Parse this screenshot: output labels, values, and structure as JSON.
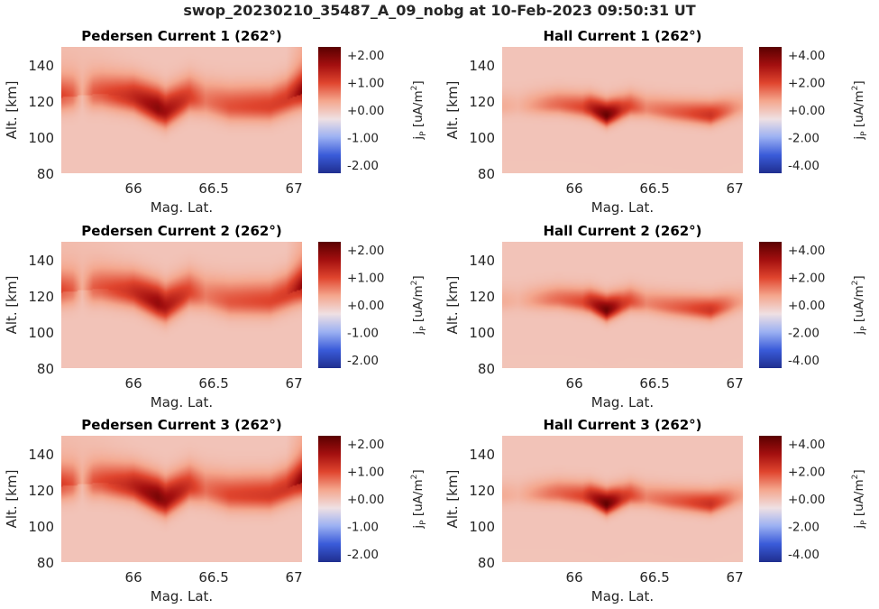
{
  "figure": {
    "title": "swop_20230210_35487_A_09_nobg at 10-Feb-2023 09:50:31 UT"
  },
  "colors": {
    "colormap": [
      "#1f2e8f",
      "#3a5bd9",
      "#9bb0f2",
      "#efe0e3",
      "#f4a78e",
      "#e0452e",
      "#a30f0f",
      "#5a0000"
    ],
    "background": "#efe0e3"
  },
  "chart_data": [
    {
      "type": "heatmap",
      "title": "Pedersen Current 1 (262°)",
      "xlabel": "Mag. Lat.",
      "ylabel": "Alt. [km]",
      "xlim": [
        65.55,
        67.05
      ],
      "ylim": [
        80,
        150
      ],
      "xticks": [
        "66",
        "66.5",
        "67"
      ],
      "xtick_values": [
        66,
        66.5,
        67
      ],
      "yticks": [
        "80",
        "100",
        "120",
        "140"
      ],
      "ytick_values": [
        80,
        100,
        120,
        140
      ],
      "colorbar": {
        "label": "j",
        "label_sub": "P",
        "label_unit": "[uA/m",
        "label_sup": "2",
        "label_end": "]",
        "clim": [
          -2.3,
          2.3
        ],
        "ticks": [
          "+2.00",
          "+1.00",
          "+0.00",
          "-1.00",
          "-2.00"
        ],
        "tick_values": [
          2,
          1,
          0,
          -1,
          -2
        ]
      },
      "field": {
        "max_value": 1.9,
        "center_altitude_by_lat": [
          [
            65.55,
            122
          ],
          [
            65.8,
            124
          ],
          [
            66.0,
            122
          ],
          [
            66.2,
            114
          ],
          [
            66.35,
            122
          ],
          [
            66.6,
            117
          ],
          [
            66.85,
            117
          ],
          [
            67.05,
            124
          ]
        ],
        "vertical_width_km": 9,
        "intensity_by_lat": [
          [
            65.55,
            0.42
          ],
          [
            65.62,
            0.34
          ],
          [
            65.68,
            0.05
          ],
          [
            65.75,
            0.38
          ],
          [
            65.95,
            0.62
          ],
          [
            66.15,
            0.98
          ],
          [
            66.3,
            0.68
          ],
          [
            66.45,
            0.34
          ],
          [
            66.6,
            0.48
          ],
          [
            66.85,
            0.55
          ],
          [
            67.0,
            0.6
          ],
          [
            67.05,
            0.68
          ]
        ],
        "upward_plume": [
          [
            65.55,
            0.3
          ],
          [
            66.0,
            0.0
          ],
          [
            66.95,
            0.0
          ],
          [
            67.05,
            0.75
          ]
        ]
      }
    },
    {
      "type": "heatmap",
      "title": "Hall Current 1 (262°)",
      "xlabel": "Mag. Lat.",
      "ylabel": "Alt. [km]",
      "xlim": [
        65.55,
        67.05
      ],
      "ylim": [
        80,
        150
      ],
      "xticks": [
        "66",
        "66.5",
        "67"
      ],
      "xtick_values": [
        66,
        66.5,
        67
      ],
      "yticks": [
        "80",
        "100",
        "120",
        "140"
      ],
      "ytick_values": [
        80,
        100,
        120,
        140
      ],
      "colorbar": {
        "label": "j",
        "label_sub": "P",
        "label_unit": "[uA/m",
        "label_sup": "2",
        "label_end": "]",
        "clim": [
          -4.6,
          4.6
        ],
        "ticks": [
          "+4.00",
          "+2.00",
          "+0.00",
          "-2.00",
          "-4.00"
        ],
        "tick_values": [
          4,
          2,
          0,
          -2,
          -4
        ]
      },
      "field": {
        "max_value": 4.4,
        "center_altitude_by_lat": [
          [
            65.55,
            117
          ],
          [
            65.9,
            118
          ],
          [
            66.1,
            116
          ],
          [
            66.2,
            112
          ],
          [
            66.35,
            117
          ],
          [
            66.6,
            114
          ],
          [
            66.85,
            112
          ],
          [
            67.05,
            117
          ]
        ],
        "vertical_width_km": 6,
        "intensity_by_lat": [
          [
            65.55,
            0.12
          ],
          [
            65.65,
            0.08
          ],
          [
            65.85,
            0.3
          ],
          [
            66.05,
            0.45
          ],
          [
            66.2,
            1.0
          ],
          [
            66.3,
            0.55
          ],
          [
            66.45,
            0.25
          ],
          [
            66.7,
            0.42
          ],
          [
            66.85,
            0.55
          ],
          [
            67.0,
            0.22
          ],
          [
            67.05,
            0.15
          ]
        ],
        "upward_plume": []
      }
    },
    {
      "type": "heatmap",
      "title": "Pedersen Current 2 (262°)",
      "xlabel": "Mag. Lat.",
      "ylabel": "Alt. [km]",
      "xlim": [
        65.55,
        67.05
      ],
      "ylim": [
        80,
        150
      ],
      "xticks": [
        "66",
        "66.5",
        "67"
      ],
      "xtick_values": [
        66,
        66.5,
        67
      ],
      "yticks": [
        "80",
        "100",
        "120",
        "140"
      ],
      "ytick_values": [
        80,
        100,
        120,
        140
      ],
      "colorbar": {
        "label": "j",
        "label_sub": "P",
        "label_unit": "[uA/m",
        "label_sup": "2",
        "label_end": "]",
        "clim": [
          -2.3,
          2.3
        ],
        "ticks": [
          "+2.00",
          "+1.00",
          "+0.00",
          "-1.00",
          "-2.00"
        ],
        "tick_values": [
          2,
          1,
          0,
          -1,
          -2
        ]
      },
      "field": {
        "max_value": 1.85,
        "center_altitude_by_lat": [
          [
            65.55,
            122
          ],
          [
            65.8,
            124
          ],
          [
            66.0,
            122
          ],
          [
            66.2,
            114
          ],
          [
            66.35,
            122
          ],
          [
            66.6,
            117
          ],
          [
            66.85,
            117
          ],
          [
            67.05,
            124
          ]
        ],
        "vertical_width_km": 9,
        "intensity_by_lat": [
          [
            65.55,
            0.42
          ],
          [
            65.62,
            0.34
          ],
          [
            65.68,
            0.05
          ],
          [
            65.75,
            0.38
          ],
          [
            65.95,
            0.6
          ],
          [
            66.15,
            0.96
          ],
          [
            66.3,
            0.66
          ],
          [
            66.45,
            0.33
          ],
          [
            66.6,
            0.47
          ],
          [
            66.85,
            0.54
          ],
          [
            67.0,
            0.6
          ],
          [
            67.05,
            0.68
          ]
        ],
        "upward_plume": [
          [
            65.55,
            0.3
          ],
          [
            66.0,
            0.0
          ],
          [
            66.95,
            0.0
          ],
          [
            67.05,
            0.75
          ]
        ]
      }
    },
    {
      "type": "heatmap",
      "title": "Hall Current 2 (262°)",
      "xlabel": "Mag. Lat.",
      "ylabel": "Alt. [km]",
      "xlim": [
        65.55,
        67.05
      ],
      "ylim": [
        80,
        150
      ],
      "xticks": [
        "66",
        "66.5",
        "67"
      ],
      "xtick_values": [
        66,
        66.5,
        67
      ],
      "yticks": [
        "80",
        "100",
        "120",
        "140"
      ],
      "ytick_values": [
        80,
        100,
        120,
        140
      ],
      "colorbar": {
        "label": "j",
        "label_sub": "P",
        "label_unit": "[uA/m",
        "label_sup": "2",
        "label_end": "]",
        "clim": [
          -4.6,
          4.6
        ],
        "ticks": [
          "+4.00",
          "+2.00",
          "+0.00",
          "-2.00",
          "-4.00"
        ],
        "tick_values": [
          4,
          2,
          0,
          -2,
          -4
        ]
      },
      "field": {
        "max_value": 4.3,
        "center_altitude_by_lat": [
          [
            65.55,
            117
          ],
          [
            65.9,
            118
          ],
          [
            66.1,
            116
          ],
          [
            66.2,
            112
          ],
          [
            66.35,
            117
          ],
          [
            66.6,
            114
          ],
          [
            66.85,
            112
          ],
          [
            67.05,
            117
          ]
        ],
        "vertical_width_km": 6,
        "intensity_by_lat": [
          [
            65.55,
            0.12
          ],
          [
            65.65,
            0.08
          ],
          [
            65.85,
            0.3
          ],
          [
            66.05,
            0.45
          ],
          [
            66.2,
            1.0
          ],
          [
            66.3,
            0.55
          ],
          [
            66.45,
            0.25
          ],
          [
            66.7,
            0.42
          ],
          [
            66.85,
            0.55
          ],
          [
            67.0,
            0.22
          ],
          [
            67.05,
            0.15
          ]
        ],
        "upward_plume": []
      }
    },
    {
      "type": "heatmap",
      "title": "Pedersen Current 3 (262°)",
      "xlabel": "Mag. Lat.",
      "ylabel": "Alt. [km]",
      "xlim": [
        65.55,
        67.05
      ],
      "ylim": [
        80,
        150
      ],
      "xticks": [
        "66",
        "66.5",
        "67"
      ],
      "xtick_values": [
        66,
        66.5,
        67
      ],
      "yticks": [
        "80",
        "100",
        "120",
        "140"
      ],
      "ytick_values": [
        80,
        100,
        120,
        140
      ],
      "colorbar": {
        "label": "j",
        "label_sub": "P",
        "label_unit": "[uA/m",
        "label_sup": "2",
        "label_end": "]",
        "clim": [
          -2.3,
          2.3
        ],
        "ticks": [
          "+2.00",
          "+1.00",
          "+0.00",
          "-1.00",
          "-2.00"
        ],
        "tick_values": [
          2,
          1,
          0,
          -1,
          -2
        ]
      },
      "field": {
        "max_value": 2.0,
        "center_altitude_by_lat": [
          [
            65.55,
            122
          ],
          [
            65.8,
            124
          ],
          [
            66.0,
            122
          ],
          [
            66.2,
            114
          ],
          [
            66.35,
            122
          ],
          [
            66.6,
            117
          ],
          [
            66.85,
            117
          ],
          [
            67.05,
            124
          ]
        ],
        "vertical_width_km": 9,
        "intensity_by_lat": [
          [
            65.55,
            0.42
          ],
          [
            65.62,
            0.34
          ],
          [
            65.68,
            0.05
          ],
          [
            65.75,
            0.38
          ],
          [
            65.95,
            0.62
          ],
          [
            66.15,
            1.0
          ],
          [
            66.3,
            0.7
          ],
          [
            66.45,
            0.35
          ],
          [
            66.6,
            0.5
          ],
          [
            66.85,
            0.56
          ],
          [
            67.0,
            0.6
          ],
          [
            67.05,
            0.68
          ]
        ],
        "upward_plume": [
          [
            65.55,
            0.3
          ],
          [
            66.0,
            0.0
          ],
          [
            66.95,
            0.0
          ],
          [
            67.05,
            0.75
          ]
        ]
      }
    },
    {
      "type": "heatmap",
      "title": "Hall Current 3 (262°)",
      "xlabel": "Mag. Lat.",
      "ylabel": "Alt. [km]",
      "xlim": [
        65.55,
        67.05
      ],
      "ylim": [
        80,
        150
      ],
      "xticks": [
        "66",
        "66.5",
        "67"
      ],
      "xtick_values": [
        66,
        66.5,
        67
      ],
      "yticks": [
        "80",
        "100",
        "120",
        "140"
      ],
      "ytick_values": [
        80,
        100,
        120,
        140
      ],
      "colorbar": {
        "label": "j",
        "label_sub": "P",
        "label_unit": "[uA/m",
        "label_sup": "2",
        "label_end": "]",
        "clim": [
          -4.6,
          4.6
        ],
        "ticks": [
          "+4.00",
          "+2.00",
          "+0.00",
          "-2.00",
          "-4.00"
        ],
        "tick_values": [
          4,
          2,
          0,
          -2,
          -4
        ]
      },
      "field": {
        "max_value": 4.5,
        "center_altitude_by_lat": [
          [
            65.55,
            117
          ],
          [
            65.9,
            118
          ],
          [
            66.1,
            116
          ],
          [
            66.2,
            112
          ],
          [
            66.35,
            117
          ],
          [
            66.6,
            114
          ],
          [
            66.85,
            112
          ],
          [
            67.05,
            117
          ]
        ],
        "vertical_width_km": 6,
        "intensity_by_lat": [
          [
            65.55,
            0.12
          ],
          [
            65.65,
            0.08
          ],
          [
            65.85,
            0.3
          ],
          [
            66.05,
            0.45
          ],
          [
            66.2,
            1.0
          ],
          [
            66.3,
            0.55
          ],
          [
            66.45,
            0.25
          ],
          [
            66.7,
            0.42
          ],
          [
            66.85,
            0.55
          ],
          [
            67.0,
            0.22
          ],
          [
            67.05,
            0.15
          ]
        ],
        "upward_plume": []
      }
    }
  ]
}
